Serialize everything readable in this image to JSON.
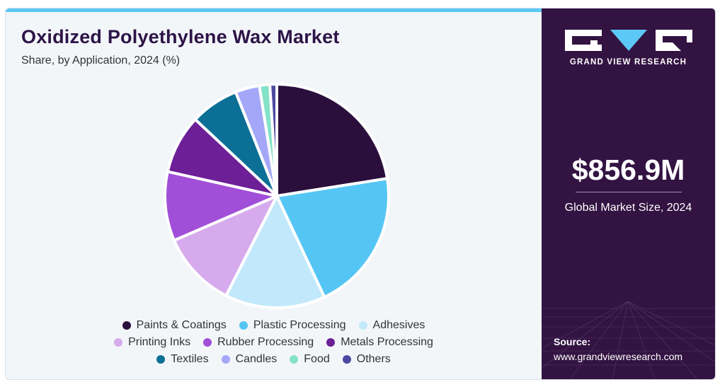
{
  "header": {
    "title": "Oxidized Polyethylene Wax Market",
    "subtitle": "Share, by Application, 2024 (%)"
  },
  "sidebar": {
    "brand": "GRAND VIEW RESEARCH",
    "market_value": "$856.9M",
    "market_label": "Global Market Size, 2024",
    "source_label": "Source:",
    "source_url": "www.grandviewresearch.com"
  },
  "colors": {
    "sidebar_bg": "#331342",
    "accent": "#5bc8f5",
    "title": "#2d1448"
  },
  "chart_data": {
    "type": "pie",
    "title": "Oxidized Polyethylene Wax Market",
    "subtitle": "Share, by Application, 2024 (%)",
    "legend_position": "bottom",
    "slices": [
      {
        "label": "Paints & Coatings",
        "value": 22.5,
        "color": "#2a0f3d"
      },
      {
        "label": "Plastic Processing",
        "value": 20.5,
        "color": "#55c6f4"
      },
      {
        "label": "Adhesives",
        "value": 14.5,
        "color": "#c2e9fb"
      },
      {
        "label": "Printing Inks",
        "value": 11.0,
        "color": "#d6aaec"
      },
      {
        "label": "Rubber Processing",
        "value": 10.0,
        "color": "#a14fd8"
      },
      {
        "label": "Metals Processing",
        "value": 8.5,
        "color": "#6c1f96"
      },
      {
        "label": "Textiles",
        "value": 7.0,
        "color": "#0b6f96"
      },
      {
        "label": "Candles",
        "value": 3.5,
        "color": "#a4a7f8"
      },
      {
        "label": "Food",
        "value": 1.5,
        "color": "#84e2c8"
      },
      {
        "label": "Others",
        "value": 1.0,
        "color": "#4c4aa0"
      }
    ]
  }
}
